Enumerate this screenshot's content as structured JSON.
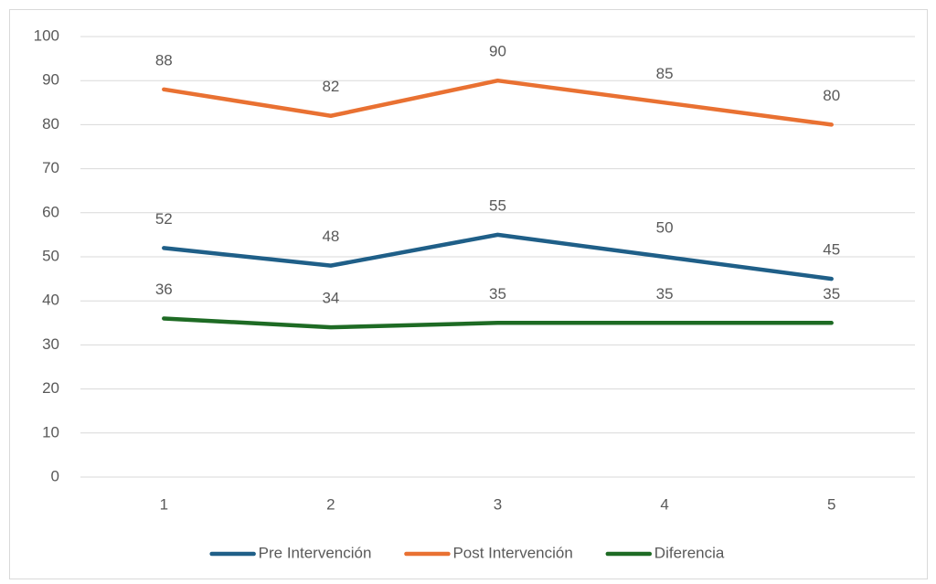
{
  "chart_data": {
    "type": "line",
    "categories": [
      "1",
      "2",
      "3",
      "4",
      "5"
    ],
    "series": [
      {
        "name": "Pre Intervención",
        "color": "#1f5f88",
        "values": [
          52,
          48,
          55,
          50,
          45
        ]
      },
      {
        "name": "Post Intervención",
        "color": "#e97132",
        "values": [
          88,
          82,
          90,
          85,
          80
        ]
      },
      {
        "name": "Diferencia",
        "color": "#1e6b24",
        "values": [
          36,
          34,
          35,
          35,
          35
        ]
      }
    ],
    "ylim": [
      0,
      100
    ],
    "yticks": [
      0,
      10,
      20,
      30,
      40,
      50,
      60,
      70,
      80,
      90,
      100
    ],
    "grid": true,
    "legend": "bottom",
    "data_labels": true
  }
}
